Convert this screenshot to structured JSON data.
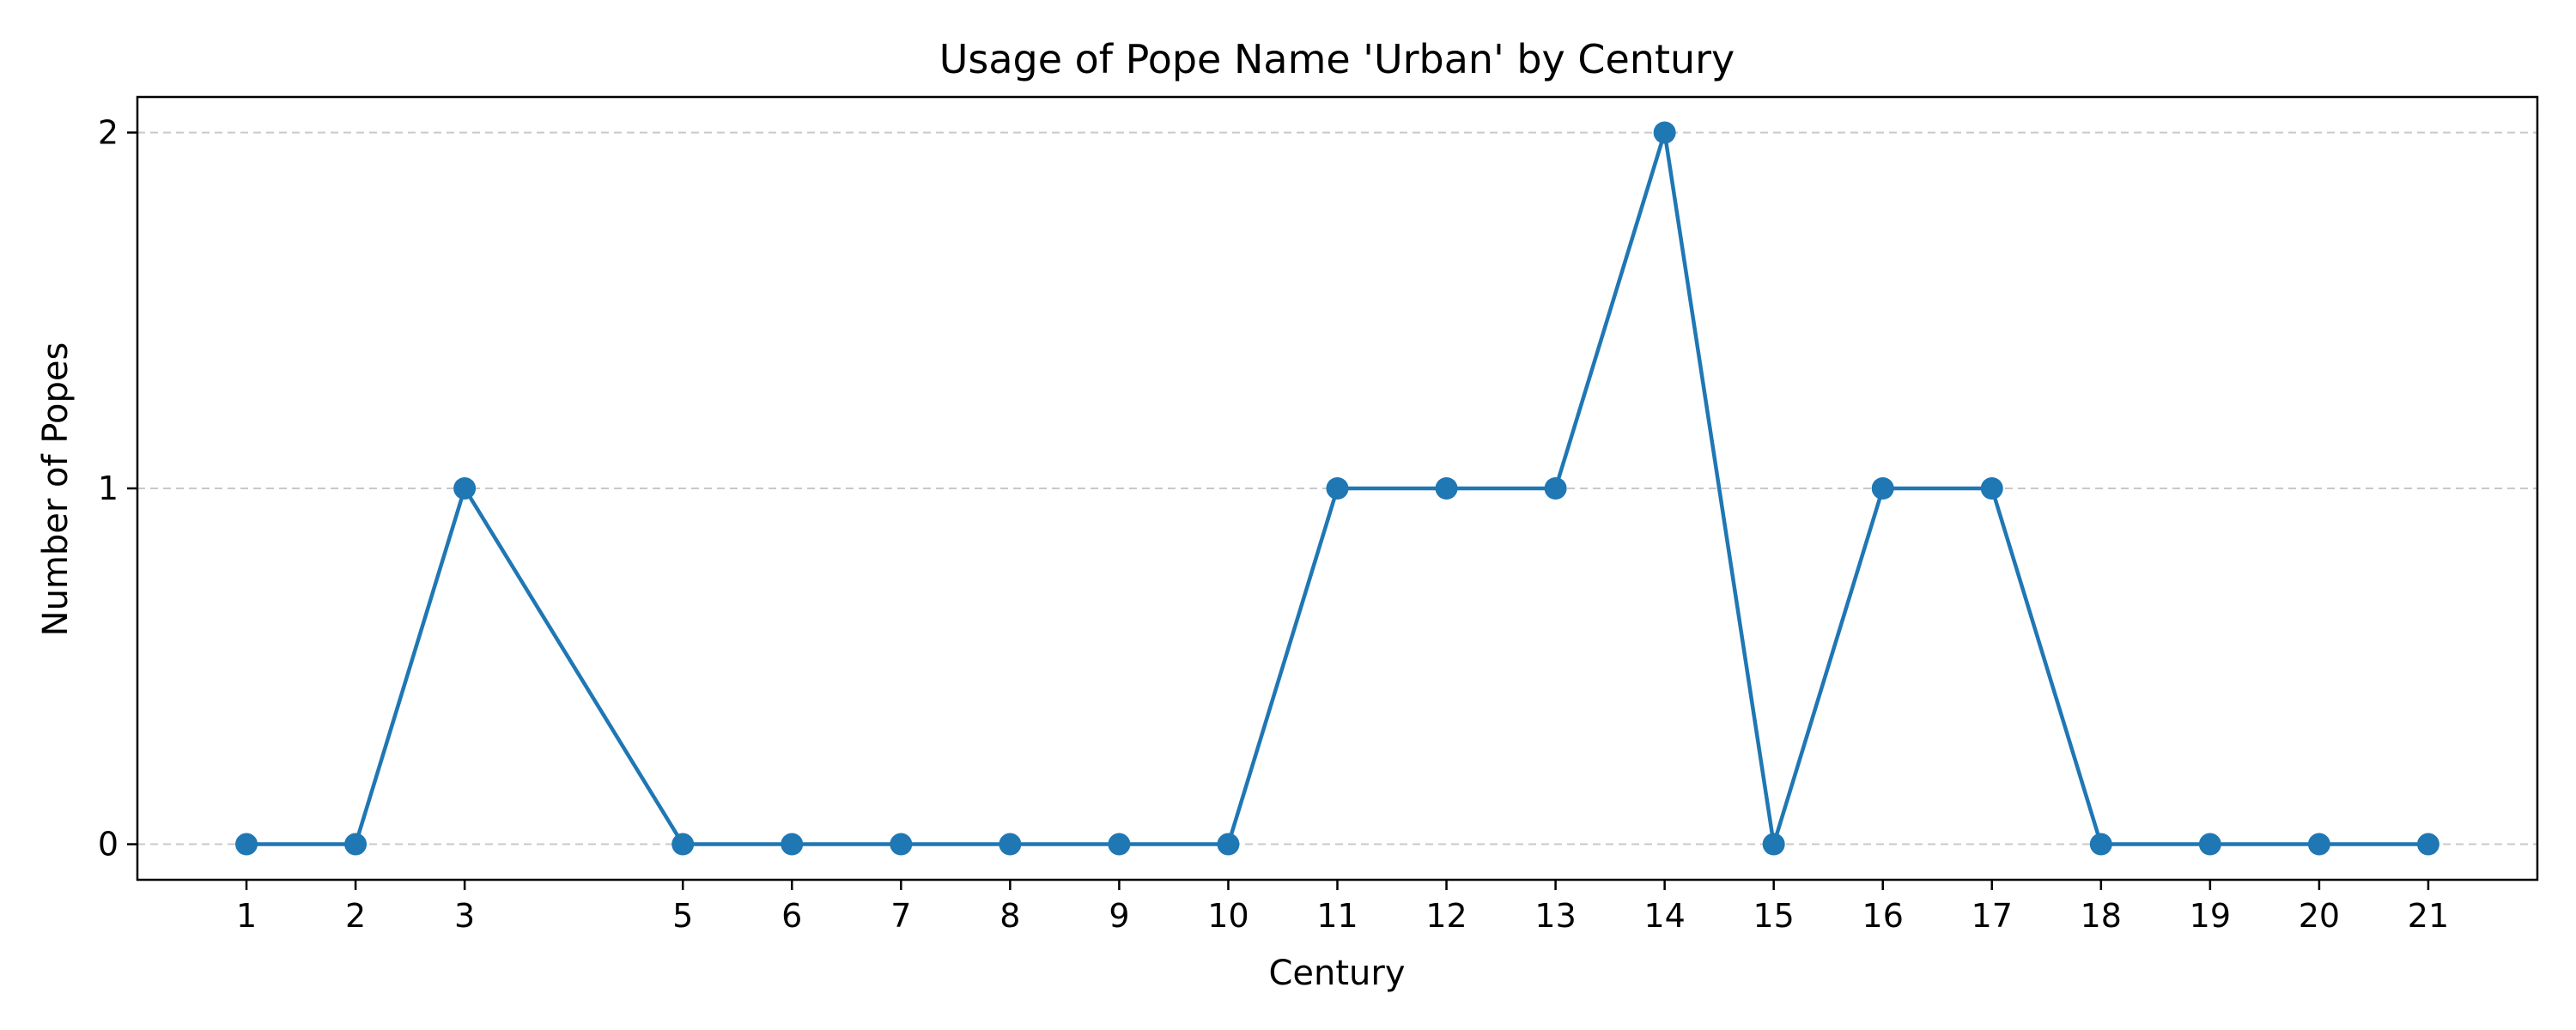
{
  "chart_data": {
    "type": "line",
    "title": "Usage of Pope Name 'Urban' by Century",
    "xlabel": "Century",
    "ylabel": "Number of Popes",
    "x": [
      1,
      2,
      3,
      5,
      6,
      7,
      8,
      9,
      10,
      11,
      12,
      13,
      14,
      15,
      16,
      17,
      18,
      19,
      20,
      21
    ],
    "y": [
      0,
      0,
      1,
      0,
      0,
      0,
      0,
      0,
      0,
      1,
      1,
      1,
      2,
      0,
      1,
      1,
      0,
      0,
      0,
      0
    ],
    "xticks": [
      "1",
      "2",
      "3",
      "5",
      "6",
      "7",
      "8",
      "9",
      "10",
      "11",
      "12",
      "13",
      "14",
      "15",
      "16",
      "17",
      "18",
      "19",
      "20",
      "21"
    ],
    "yticks": [
      "0",
      "1",
      "2"
    ],
    "xlim": [
      0,
      22
    ],
    "ylim": [
      -0.1,
      2.1
    ],
    "grid": "horizontal dashed",
    "line_color": "#1f77b4",
    "grid_color": "#c8c8c8"
  }
}
